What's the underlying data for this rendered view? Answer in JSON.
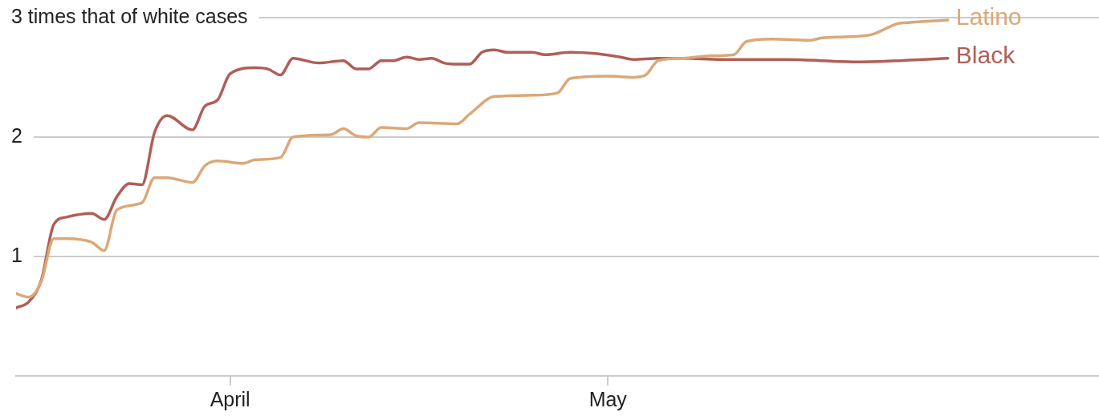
{
  "chart_data": {
    "type": "line",
    "xlim": [
      "--03-15",
      "--06-09"
    ],
    "xticks": [
      {
        "value": "--04-01",
        "label": "April"
      },
      {
        "value": "--05-01",
        "label": "May"
      }
    ],
    "ylim": [
      0,
      3
    ],
    "yticks": [
      1,
      2,
      {
        "value": 3,
        "label": "3 times that of white cases"
      }
    ],
    "grid": "y",
    "legend": false,
    "marker": "none",
    "line_style": "solid",
    "series": [
      {
        "name": "Latino",
        "color": "#dba878",
        "x": [
          "--03-15",
          "--03-16",
          "--03-17",
          "--03-18",
          "--03-19",
          "--03-21",
          "--03-22",
          "--03-23",
          "--03-25",
          "--03-26",
          "--03-27",
          "--03-29",
          "--03-30",
          "--03-31",
          "--04-02",
          "--04-03",
          "--04-05",
          "--04-06",
          "--04-09",
          "--04-10",
          "--04-11",
          "--04-12",
          "--04-13",
          "--04-15",
          "--04-16",
          "--04-19",
          "--04-20",
          "--04-22",
          "--04-25",
          "--04-27",
          "--04-28",
          "--05-01",
          "--05-03",
          "--05-04",
          "--05-05",
          "--05-07",
          "--05-09",
          "--05-11",
          "--05-12",
          "--05-14",
          "--05-17",
          "--05-18",
          "--05-20",
          "--05-22",
          "--05-24",
          "--05-25",
          "--05-28"
        ],
        "values": [
          0.69,
          0.66,
          0.79,
          1.15,
          1.15,
          1.12,
          1.05,
          1.39,
          1.45,
          1.66,
          1.66,
          1.62,
          1.76,
          1.8,
          1.78,
          1.81,
          1.83,
          2.0,
          2.02,
          2.07,
          2.01,
          2.0,
          2.08,
          2.07,
          2.12,
          2.11,
          2.19,
          2.34,
          2.35,
          2.37,
          2.49,
          2.51,
          2.5,
          2.52,
          2.64,
          2.66,
          2.68,
          2.69,
          2.8,
          2.82,
          2.81,
          2.83,
          2.84,
          2.86,
          2.95,
          2.96,
          2.98
        ]
      },
      {
        "name": "Black",
        "color": "#b05e57",
        "x": [
          "--03-15",
          "--03-16",
          "--03-17",
          "--03-18",
          "--03-19",
          "--03-21",
          "--03-22",
          "--03-23",
          "--03-24",
          "--03-25",
          "--03-26",
          "--03-27",
          "--03-29",
          "--03-30",
          "--03-31",
          "--04-01",
          "--04-03",
          "--04-04",
          "--04-05",
          "--04-06",
          "--04-08",
          "--04-10",
          "--04-11",
          "--04-12",
          "--04-13",
          "--04-14",
          "--04-15",
          "--04-16",
          "--04-17",
          "--04-18",
          "--04-19",
          "--04-20",
          "--04-21",
          "--04-22",
          "--04-23",
          "--04-25",
          "--04-26",
          "--04-28",
          "--04-30",
          "--05-02",
          "--05-03",
          "--05-05",
          "--05-07",
          "--05-10",
          "--05-15",
          "--05-21",
          "--05-28"
        ],
        "values": [
          0.57,
          0.62,
          0.8,
          1.27,
          1.33,
          1.36,
          1.31,
          1.5,
          1.61,
          1.6,
          2.04,
          2.18,
          2.06,
          2.26,
          2.31,
          2.53,
          2.58,
          2.57,
          2.52,
          2.66,
          2.62,
          2.64,
          2.57,
          2.57,
          2.64,
          2.64,
          2.67,
          2.65,
          2.66,
          2.62,
          2.61,
          2.61,
          2.71,
          2.73,
          2.71,
          2.71,
          2.69,
          2.71,
          2.7,
          2.67,
          2.65,
          2.66,
          2.66,
          2.65,
          2.65,
          2.63,
          2.66
        ]
      }
    ]
  }
}
